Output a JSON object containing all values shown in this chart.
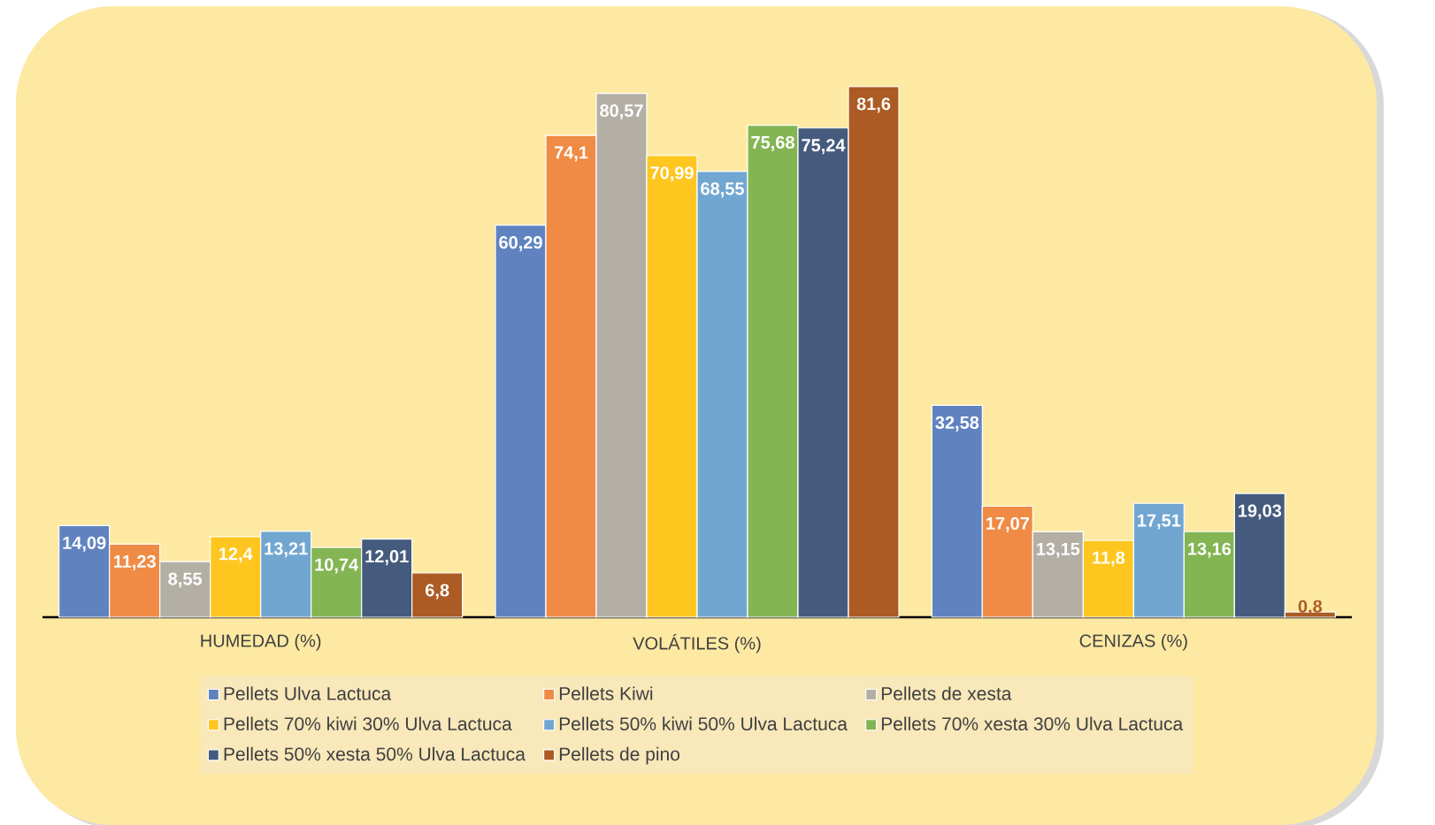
{
  "chart_data": {
    "type": "bar",
    "categories": [
      "HUMEDAD (%)",
      "VOLÁTILES (%)",
      "CENIZAS (%)"
    ],
    "series": [
      {
        "name": "Pellets Ulva Lactuca",
        "color": "#6083c0",
        "values": [
          14.09,
          60.29,
          32.58
        ],
        "value_labels": [
          "14,09",
          "60,29",
          "32,58"
        ]
      },
      {
        "name": "Pellets Kiwi",
        "color": "#ef8b45",
        "values": [
          11.23,
          74.1,
          17.07
        ],
        "value_labels": [
          "11,23",
          "74,1",
          "17,07"
        ]
      },
      {
        "name": "Pellets de xesta",
        "color": "#b3afa5",
        "values": [
          8.55,
          80.57,
          13.15
        ],
        "value_labels": [
          "8,55",
          "80,57",
          "13,15"
        ]
      },
      {
        "name": "Pellets 70% kiwi 30% Ulva Lactuca",
        "color": "#fec61f",
        "values": [
          12.4,
          70.99,
          11.8
        ],
        "value_labels": [
          "12,4",
          "70,99",
          "11,8"
        ]
      },
      {
        "name": "Pellets 50% kiwi 50% Ulva Lactuca",
        "color": "#71a6d1",
        "values": [
          13.21,
          68.55,
          17.51
        ],
        "value_labels": [
          "13,21",
          "68,55",
          "17,51"
        ]
      },
      {
        "name": "Pellets 70% xesta 30% Ulva Lactuca",
        "color": "#83b553",
        "values": [
          10.74,
          75.68,
          13.16
        ],
        "value_labels": [
          "10,74",
          "75,68",
          "13,16"
        ]
      },
      {
        "name": "Pellets 50% xesta 50% Ulva Lactuca",
        "color": "#455b7d",
        "values": [
          12.01,
          75.24,
          19.03
        ],
        "value_labels": [
          "12,01",
          "75,24",
          "19,03"
        ]
      },
      {
        "name": "Pellets de pino",
        "color": "#ab5b23",
        "values": [
          6.8,
          81.6,
          0.8
        ],
        "value_labels": [
          "6,8",
          "81,6",
          "0,8"
        ]
      }
    ],
    "legend": "bottom"
  }
}
